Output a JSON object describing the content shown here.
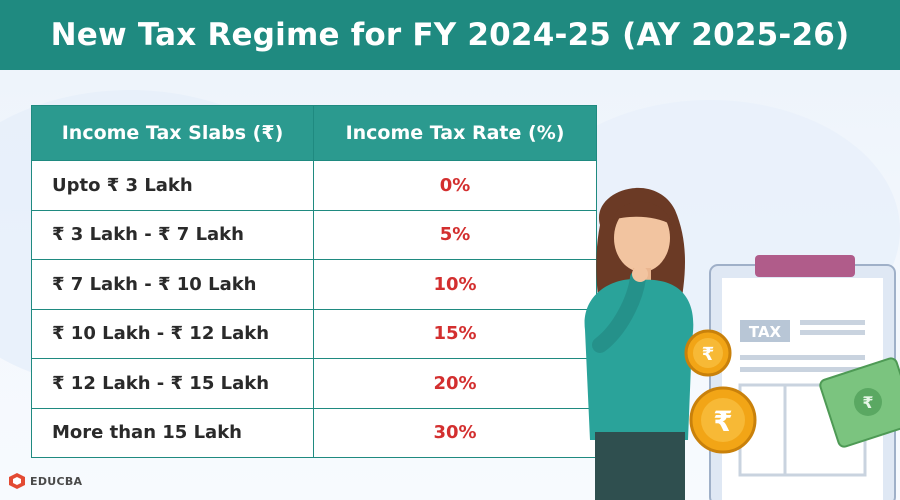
{
  "header": {
    "title": "New Tax Regime for FY 2024-25 (AY 2025-26)"
  },
  "table": {
    "columns": [
      "Income Tax Slabs (₹)",
      "Income Tax Rate (%)"
    ],
    "rows": [
      {
        "slab": "Upto ₹ 3 Lakh",
        "rate": "0%"
      },
      {
        "slab": "₹ 3 Lakh - ₹ 7 Lakh",
        "rate": "5%"
      },
      {
        "slab": "₹ 7 Lakh - ₹ 10 Lakh",
        "rate": "10%"
      },
      {
        "slab": "₹ 10 Lakh - ₹ 12 Lakh",
        "rate": "15%"
      },
      {
        "slab": "₹ 12 Lakh - ₹ 15 Lakh",
        "rate": "20%"
      },
      {
        "slab": "More than 15 Lakh",
        "rate": "30%"
      }
    ]
  },
  "illustration": {
    "clipboard_label": "TAX",
    "coin_symbol": "₹",
    "banknote_symbol": "₹"
  },
  "footer": {
    "brand": "EDUCBA"
  },
  "colors": {
    "banner": "#1f8a80",
    "table_header": "#2b9a8f",
    "rate_text": "#d32f2f",
    "coin": "#f2a516"
  }
}
